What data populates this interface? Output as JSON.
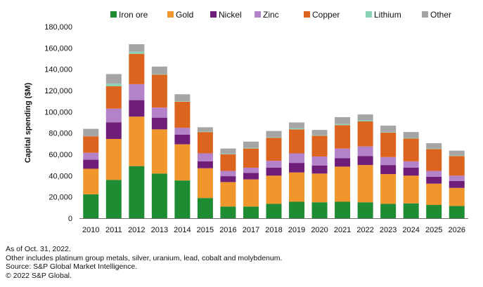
{
  "chart_data": {
    "type": "bar",
    "stacked": true,
    "categories": [
      "2010",
      "2011",
      "2012",
      "2013",
      "2014",
      "2015",
      "2016",
      "2017",
      "2018",
      "2019",
      "2020",
      "2021",
      "2022",
      "2023",
      "2024",
      "2025",
      "2026"
    ],
    "series": [
      {
        "name": "Iron ore",
        "color": "#1e8c32",
        "values": [
          22500,
          36000,
          49000,
          42000,
          35500,
          19000,
          11000,
          11000,
          13500,
          15500,
          15000,
          15500,
          15000,
          13500,
          14000,
          12500,
          11500
        ]
      },
      {
        "name": "Gold",
        "color": "#f0962d",
        "values": [
          24000,
          38500,
          46500,
          41500,
          34000,
          28000,
          23000,
          25500,
          26500,
          27500,
          27000,
          33000,
          35000,
          28000,
          26000,
          20000,
          17000
        ]
      },
      {
        "name": "Nickel",
        "color": "#6e1e78",
        "values": [
          8500,
          15500,
          15500,
          11000,
          9000,
          6500,
          5500,
          6000,
          7500,
          9000,
          7500,
          8000,
          8500,
          8500,
          7500,
          6500,
          6500
        ]
      },
      {
        "name": "Zinc",
        "color": "#b482c8",
        "values": [
          6500,
          13000,
          15000,
          9500,
          6500,
          7500,
          5000,
          5000,
          6500,
          9000,
          8500,
          9000,
          9000,
          7500,
          6000,
          5500,
          5000
        ]
      },
      {
        "name": "Copper",
        "color": "#dc641e",
        "values": [
          15500,
          21000,
          28500,
          31000,
          24500,
          20000,
          15500,
          18000,
          21500,
          22500,
          19500,
          22000,
          23500,
          23000,
          21500,
          20500,
          18500
        ]
      },
      {
        "name": "Lithium",
        "color": "#8cd2b4",
        "values": [
          0,
          2500,
          2000,
          500,
          500,
          500,
          500,
          500,
          500,
          1000,
          500,
          1000,
          1000,
          500,
          500,
          500,
          500
        ]
      },
      {
        "name": "Other",
        "color": "#a5a5a5",
        "values": [
          7000,
          9000,
          7000,
          7000,
          6500,
          4000,
          5000,
          6000,
          6000,
          5500,
          5000,
          6500,
          5500,
          6000,
          5500,
          5000,
          4500
        ]
      }
    ],
    "ylabel": "Capital spending ($M)",
    "ylim": [
      0,
      180000
    ],
    "yticks": [
      "0",
      "20,000",
      "40,000",
      "60,000",
      "80,000",
      "100,000",
      "120,000",
      "140,000",
      "160,000",
      "180,000"
    ],
    "ytick_values": [
      0,
      20000,
      40000,
      60000,
      80000,
      100000,
      120000,
      140000,
      160000,
      180000
    ],
    "grid": false,
    "legend_position": "top"
  },
  "footnotes": [
    "As of Oct. 31, 2022.",
    "Other includes platinum group metals, silver, uranium, lead, cobalt and molybdenum.",
    "Source: S&P Global Market Intelligence.",
    "© 2022 S&P Global."
  ]
}
